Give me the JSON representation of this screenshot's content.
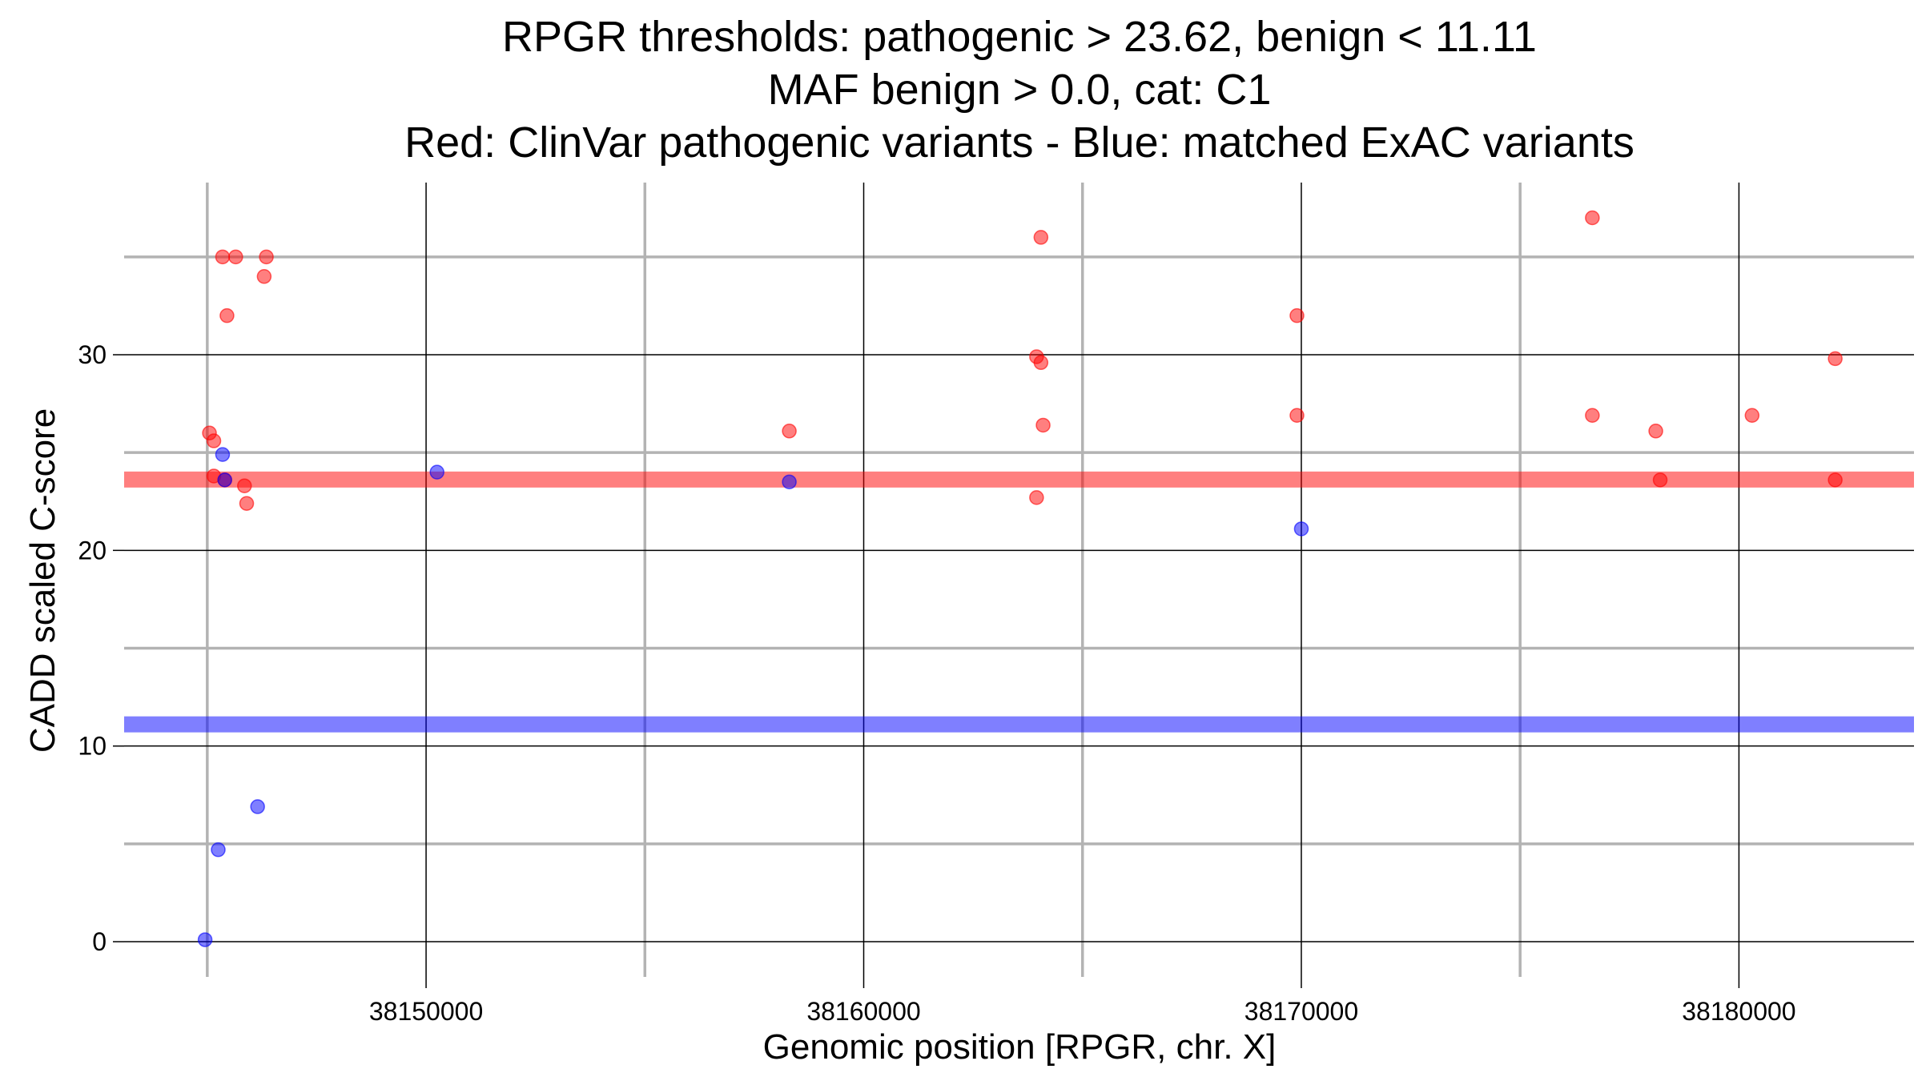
{
  "chart_data": {
    "type": "scatter",
    "title_lines": [
      "RPGR thresholds: pathogenic > 23.62, benign < 11.11",
      "MAF benign > 0.0, cat: C1",
      "Red: ClinVar pathogenic variants - Blue: matched ExAC variants"
    ],
    "xlabel": "Genomic position [RPGR, chr. X]",
    "ylabel": "CADD scaled C-score",
    "xlim": [
      38143100,
      38184000
    ],
    "ylim": [
      -1.8,
      38.8
    ],
    "x_major_ticks": [
      38150000,
      38160000,
      38170000,
      38180000
    ],
    "x_major_tick_labels": [
      "38150000",
      "38160000",
      "38170000",
      "38180000"
    ],
    "x_minor_gridlines": [
      38145000,
      38155000,
      38165000,
      38175000
    ],
    "y_major_ticks": [
      0,
      10,
      20,
      30
    ],
    "y_major_tick_labels": [
      "0",
      "10",
      "20",
      "30"
    ],
    "y_minor_gridlines": [
      5,
      15,
      25,
      35
    ],
    "grid": true,
    "thresholds": [
      {
        "name": "pathogenic",
        "value": 23.62,
        "color": "#ff0000"
      },
      {
        "name": "benign",
        "value": 11.11,
        "color": "#0000ff"
      }
    ],
    "series": [
      {
        "color": "#ff0000",
        "points": [
          [
            38145050,
            26.0
          ],
          [
            38145150,
            25.6
          ],
          [
            38145150,
            23.8
          ],
          [
            38145350,
            35.0
          ],
          [
            38145400,
            23.6
          ],
          [
            38145450,
            32.0
          ],
          [
            38145650,
            35.0
          ],
          [
            38145850,
            23.3
          ],
          [
            38145900,
            22.4
          ],
          [
            38146300,
            34.0
          ],
          [
            38146350,
            35.0
          ],
          [
            38158300,
            26.1
          ],
          [
            38163950,
            29.9
          ],
          [
            38164050,
            29.6
          ],
          [
            38164100,
            26.4
          ],
          [
            38163950,
            22.7
          ],
          [
            38164050,
            36.0
          ],
          [
            38169900,
            32.0
          ],
          [
            38169900,
            26.9
          ],
          [
            38176650,
            37.0
          ],
          [
            38176650,
            26.9
          ],
          [
            38178100,
            26.1
          ],
          [
            38178200,
            23.6
          ],
          [
            38180300,
            26.9
          ],
          [
            38182200,
            29.8
          ],
          [
            38182200,
            23.6
          ]
        ]
      },
      {
        "color": "#0000ff",
        "points": [
          [
            38144950,
            0.1
          ],
          [
            38145250,
            4.7
          ],
          [
            38145350,
            24.9
          ],
          [
            38145400,
            23.6
          ],
          [
            38146150,
            6.9
          ],
          [
            38150250,
            24.0
          ],
          [
            38158300,
            23.5
          ],
          [
            38170000,
            21.1
          ]
        ]
      }
    ]
  }
}
